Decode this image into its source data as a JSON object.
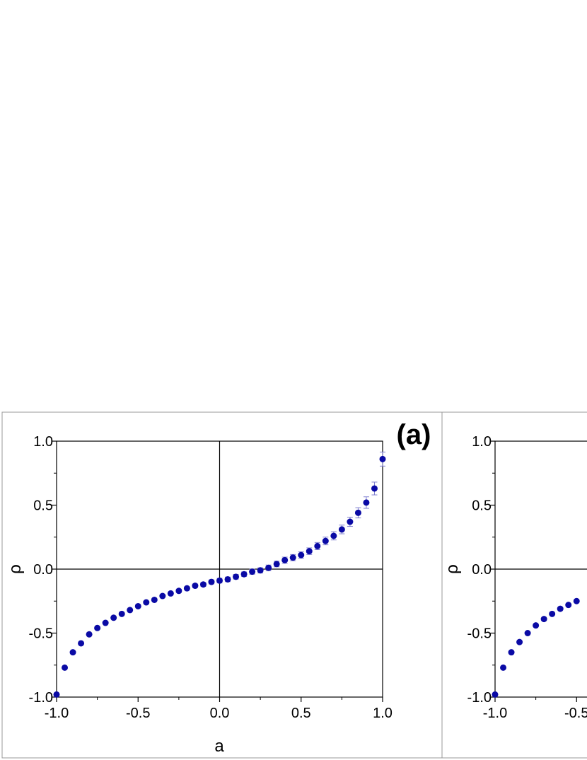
{
  "colors": {
    "marker": "#0a0aa5",
    "errorbar": "#7f7fd0",
    "axis": "#000000",
    "frame": "#999999"
  },
  "chart_data": [
    {
      "type": "scatter",
      "label": "(a)",
      "xlabel": "a",
      "ylabel": "ρ",
      "xlim": [
        -1.0,
        1.0
      ],
      "ylim": [
        -1.0,
        1.0
      ],
      "xticks": [
        "-1.0",
        "-0.5",
        "0.0",
        "0.5",
        "1.0"
      ],
      "yticks": [
        "-1.0",
        "-0.5",
        "0.0",
        "0.5",
        "1.0"
      ],
      "zero_lines": true,
      "grid": false,
      "series": [
        {
          "x": [
            -1.0,
            -0.95,
            -0.9,
            -0.85,
            -0.8,
            -0.75,
            -0.7,
            -0.65,
            -0.6,
            -0.55,
            -0.5,
            -0.45,
            -0.4,
            -0.35,
            -0.3,
            -0.25,
            -0.2,
            -0.15,
            -0.1,
            -0.05,
            0.0,
            0.05,
            0.1,
            0.15,
            0.2,
            0.25,
            0.3,
            0.35,
            0.4,
            0.45,
            0.5,
            0.55,
            0.6,
            0.65,
            0.7,
            0.75,
            0.8,
            0.85,
            0.9,
            0.95,
            1.0
          ],
          "y": [
            -0.98,
            -0.77,
            -0.65,
            -0.58,
            -0.51,
            -0.46,
            -0.42,
            -0.38,
            -0.35,
            -0.32,
            -0.29,
            -0.26,
            -0.24,
            -0.21,
            -0.19,
            -0.17,
            -0.15,
            -0.13,
            -0.12,
            -0.1,
            -0.09,
            -0.08,
            -0.06,
            -0.04,
            -0.02,
            -0.01,
            0.01,
            0.04,
            0.07,
            0.09,
            0.11,
            0.14,
            0.18,
            0.22,
            0.26,
            0.31,
            0.37,
            0.44,
            0.52,
            0.63,
            0.86
          ],
          "err": [
            0.0,
            0.005,
            0.005,
            0.005,
            0.005,
            0.005,
            0.006,
            0.006,
            0.006,
            0.006,
            0.008,
            0.008,
            0.008,
            0.01,
            0.01,
            0.012,
            0.012,
            0.014,
            0.015,
            0.016,
            0.018,
            0.018,
            0.018,
            0.018,
            0.02,
            0.02,
            0.022,
            0.022,
            0.024,
            0.024,
            0.025,
            0.026,
            0.028,
            0.03,
            0.032,
            0.034,
            0.036,
            0.04,
            0.045,
            0.05,
            0.055
          ]
        }
      ]
    },
    {
      "type": "scatter",
      "label": "",
      "xlabel": "",
      "ylabel": "ρ",
      "xlim": [
        -1.0,
        1.0
      ],
      "ylim": [
        -1.0,
        1.0
      ],
      "xticks": [
        "-1.0",
        "-0.5"
      ],
      "yticks": [
        "-1.0",
        "-0.5",
        "0.0",
        "0.5",
        "1.0"
      ],
      "zero_lines": true,
      "grid": false,
      "series": [
        {
          "x": [
            -1.0,
            -0.95,
            -0.9,
            -0.85,
            -0.8,
            -0.75,
            -0.7,
            -0.65,
            -0.6,
            -0.55,
            -0.5
          ],
          "y": [
            -0.98,
            -0.77,
            -0.65,
            -0.57,
            -0.5,
            -0.44,
            -0.39,
            -0.35,
            -0.31,
            -0.28,
            -0.25
          ],
          "err": [
            0,
            0,
            0,
            0,
            0,
            0,
            0,
            0,
            0,
            0,
            0
          ]
        }
      ]
    }
  ]
}
